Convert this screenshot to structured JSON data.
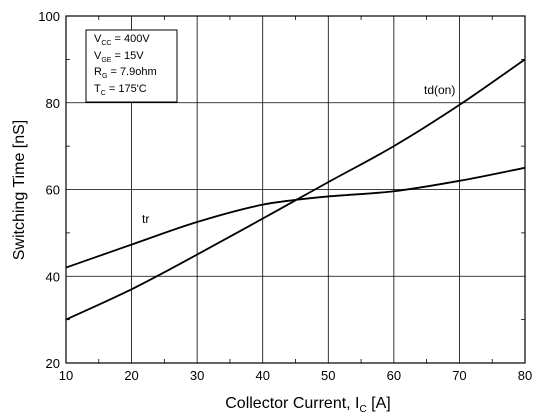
{
  "chart_data": {
    "type": "line",
    "xlabel_main": "Collector Current, I",
    "xlabel_sub": "C",
    "xlabel_unit": " [A]",
    "ylabel": "Switching Time [nS]",
    "xlim": [
      10,
      80
    ],
    "ylim": [
      20,
      100
    ],
    "x_ticks": [
      10,
      20,
      30,
      40,
      50,
      60,
      70,
      80
    ],
    "y_ticks": [
      20,
      40,
      60,
      80,
      100
    ],
    "grid": true,
    "conditions": [
      {
        "main": "V",
        "sub": "CC",
        "value": " = 400V"
      },
      {
        "main": "V",
        "sub": "GE",
        "value": " = 15V"
      },
      {
        "main": "R",
        "sub": "G",
        "value": " = 7.9ohm"
      },
      {
        "main": "T",
        "sub": "C",
        "value": " = 175'C"
      }
    ],
    "series": [
      {
        "name": "td(on)",
        "x": [
          10,
          20,
          30,
          40,
          45,
          50,
          60,
          70,
          80
        ],
        "y": [
          30,
          37,
          45,
          53.3,
          57.5,
          61.7,
          70,
          79.5,
          90
        ]
      },
      {
        "name": "tr",
        "x": [
          10,
          20,
          30,
          40,
          45,
          50,
          60,
          70,
          80
        ],
        "y": [
          42,
          47.3,
          52.5,
          56.5,
          57.6,
          58.4,
          59.6,
          62,
          65
        ]
      }
    ]
  }
}
